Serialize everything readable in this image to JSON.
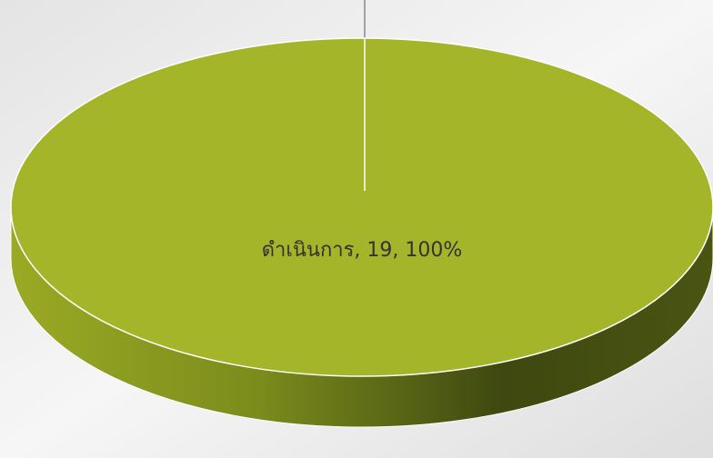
{
  "chart_data": {
    "type": "pie3d",
    "values": [
      19
    ],
    "value_labels": [
      "ดำเนินการ, 19, 100%"
    ],
    "color": "#a5b52a"
  }
}
